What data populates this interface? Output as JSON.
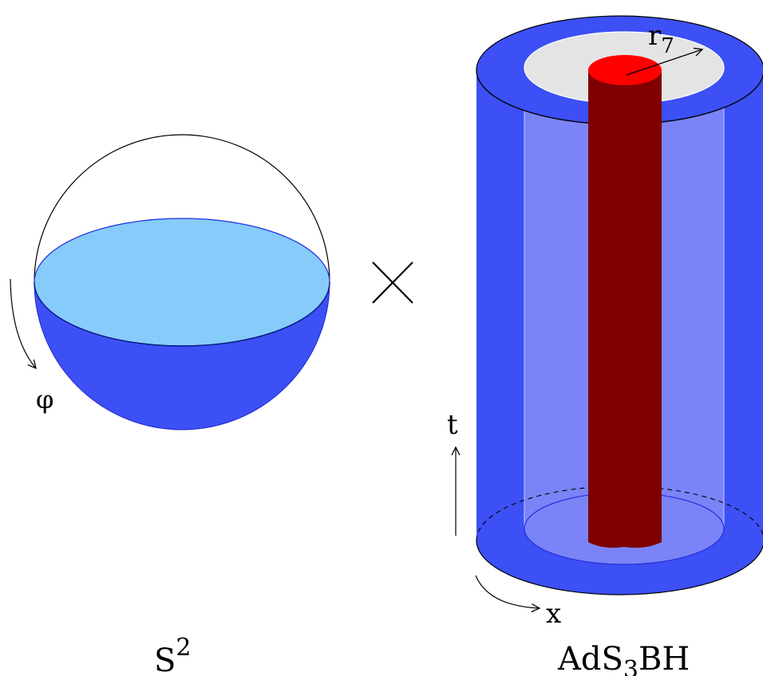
{
  "labels": {
    "phi": "φ",
    "r": "r",
    "r_sub": "7",
    "t": "t",
    "x": "x",
    "s2_base": "S",
    "s2_sup": "2",
    "ads_pre": "AdS",
    "ads_sub": "3",
    "ads_post": "BH"
  },
  "colors": {
    "outline": "#000000",
    "hemisphere": "#3c50f5",
    "equator_disk": "#86cbf9",
    "cylinder_shell": "#3c50f5",
    "cylinder_inner": "#7a84f7",
    "top_annulus": "#e4e4e4",
    "rod": "#7f0000",
    "rod_cap": "#ff0000"
  },
  "icons": {
    "product": "times-icon",
    "phi_arrow": "curved-arrow-icon",
    "x_arrow": "curved-arrow-icon",
    "t_arrow": "arrow-up-icon",
    "r_arrow": "arrow-right-icon"
  }
}
